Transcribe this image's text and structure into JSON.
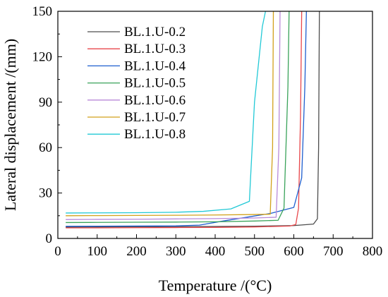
{
  "chart_data": {
    "type": "line",
    "xlabel": "Temperature /(°C)",
    "ylabel": "Lateral displacement /(mm)",
    "xlim": [
      0,
      800
    ],
    "ylim": [
      0,
      150
    ],
    "xticks": [
      0,
      100,
      200,
      300,
      400,
      500,
      600,
      700,
      800
    ],
    "yticks": [
      0,
      30,
      60,
      90,
      120,
      150
    ],
    "grid": false,
    "legend_position": "top-left",
    "series": [
      {
        "name": "BL.1.U-0.2",
        "color": "#4d4d4d",
        "x": [
          20,
          100,
          200,
          300,
          400,
          500,
          600,
          650,
          660,
          663,
          665
        ],
        "y": [
          7.5,
          7.6,
          7.7,
          7.8,
          7.9,
          8.1,
          8.5,
          9.5,
          13,
          60,
          150
        ]
      },
      {
        "name": "BL.1.U-0.3",
        "color": "#e8474b",
        "x": [
          20,
          100,
          200,
          300,
          400,
          500,
          590,
          605,
          612,
          617,
          620
        ],
        "y": [
          7.0,
          7.0,
          7.1,
          7.2,
          7.3,
          7.6,
          8.2,
          9.2,
          20,
          80,
          150
        ]
      },
      {
        "name": "BL.1.U-0.4",
        "color": "#1f5fcf",
        "x": [
          20,
          100,
          200,
          300,
          360,
          420,
          480,
          540,
          600,
          620,
          628,
          632
        ],
        "y": [
          8.0,
          8.1,
          8.2,
          8.3,
          8.8,
          11.5,
          14.0,
          16.5,
          20.5,
          40,
          100,
          150
        ]
      },
      {
        "name": "BL.1.U-0.5",
        "color": "#3aa35a",
        "x": [
          20,
          100,
          200,
          300,
          400,
          500,
          560,
          575,
          585,
          588
        ],
        "y": [
          10.5,
          10.6,
          10.7,
          10.8,
          11.0,
          11.5,
          12.0,
          20,
          100,
          150
        ]
      },
      {
        "name": "BL.1.U-0.6",
        "color": "#b98ad8",
        "x": [
          20,
          100,
          200,
          300,
          400,
          500,
          555,
          562,
          565
        ],
        "y": [
          12.5,
          12.6,
          12.7,
          12.9,
          13.1,
          13.5,
          14.0,
          60,
          150
        ]
      },
      {
        "name": "BL.1.U-0.7",
        "color": "#d2a11b",
        "x": [
          20,
          100,
          200,
          300,
          400,
          500,
          540,
          546,
          548
        ],
        "y": [
          15.0,
          15.1,
          15.2,
          15.3,
          15.5,
          15.8,
          16.0,
          60,
          150
        ]
      },
      {
        "name": "BL.1.U-0.8",
        "color": "#22c9d6",
        "x": [
          20,
          100,
          200,
          300,
          370,
          440,
          487,
          490,
          500,
          520,
          528
        ],
        "y": [
          16.8,
          16.9,
          17.0,
          17.3,
          17.9,
          19.5,
          24.5,
          40,
          90,
          140,
          150
        ]
      }
    ]
  }
}
